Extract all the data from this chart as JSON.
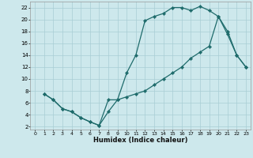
{
  "xlabel": "Humidex (Indice chaleur)",
  "bg_color": "#cde8ec",
  "grid_color": "#a8cdd4",
  "line_color": "#1e6b6b",
  "xlim": [
    -0.5,
    23.5
  ],
  "ylim": [
    1.5,
    23
  ],
  "xticks": [
    0,
    1,
    2,
    3,
    4,
    5,
    6,
    7,
    8,
    9,
    10,
    11,
    12,
    13,
    14,
    15,
    16,
    17,
    18,
    19,
    20,
    21,
    22,
    23
  ],
  "yticks": [
    2,
    4,
    6,
    8,
    10,
    12,
    14,
    16,
    18,
    20,
    22
  ],
  "line1_x": [
    1,
    2,
    3,
    4,
    5,
    6,
    7,
    8,
    9,
    10,
    11,
    12,
    13,
    14,
    15,
    16,
    17,
    18,
    19,
    20,
    21,
    22,
    23
  ],
  "line1_y": [
    7.5,
    6.5,
    5.0,
    4.5,
    3.5,
    2.8,
    2.2,
    6.5,
    6.5,
    11.0,
    14.0,
    19.8,
    20.5,
    21.0,
    22.0,
    22.0,
    21.5,
    22.2,
    21.5,
    20.5,
    17.5,
    14.0,
    12.0
  ],
  "line2_x": [
    1,
    2,
    3,
    4,
    5,
    6,
    7,
    8,
    9,
    10,
    11,
    12,
    13,
    14,
    15,
    16,
    17,
    18,
    19,
    20,
    21,
    22,
    23
  ],
  "line2_y": [
    7.5,
    6.5,
    5.0,
    4.5,
    3.5,
    2.8,
    2.2,
    4.5,
    6.5,
    7.0,
    7.5,
    8.0,
    9.0,
    10.0,
    11.0,
    12.0,
    13.5,
    14.5,
    15.5,
    20.5,
    18.0,
    14.0,
    12.0
  ]
}
